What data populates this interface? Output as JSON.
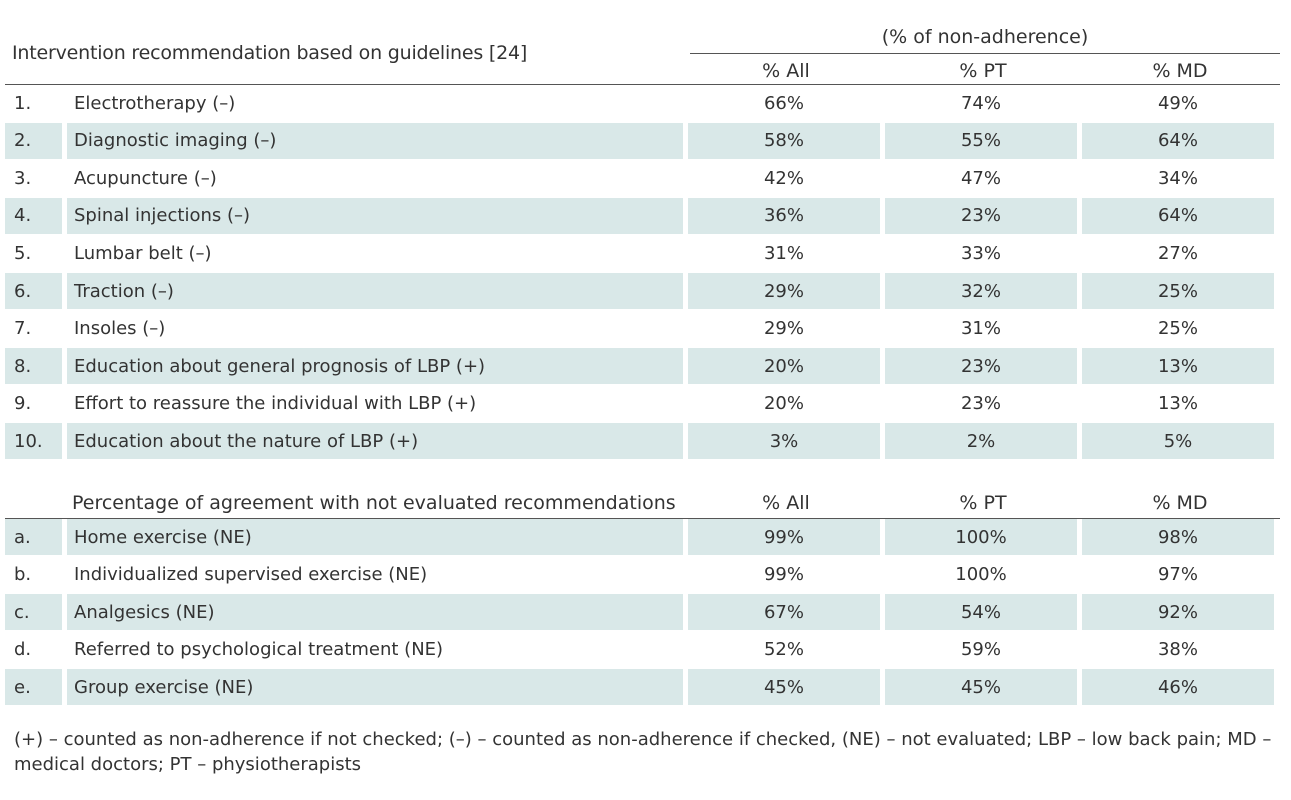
{
  "table1": {
    "heading": "Intervention recommendation based on guidelines [24]",
    "group_title": "(% of non-adherence)",
    "columns": [
      "% All",
      "% PT",
      "% MD"
    ],
    "rows": [
      {
        "num": "1.",
        "label": "Electrotherapy (–)",
        "all": "66%",
        "pt": "74%",
        "md": "49%"
      },
      {
        "num": "2.",
        "label": "Diagnostic imaging (–)",
        "all": "58%",
        "pt": "55%",
        "md": "64%"
      },
      {
        "num": "3.",
        "label": "Acupuncture (–)",
        "all": "42%",
        "pt": "47%",
        "md": "34%"
      },
      {
        "num": "4.",
        "label": "Spinal injections (–)",
        "all": "36%",
        "pt": "23%",
        "md": "64%"
      },
      {
        "num": "5.",
        "label": "Lumbar belt (–)",
        "all": "31%",
        "pt": "33%",
        "md": "27%"
      },
      {
        "num": "6.",
        "label": "Traction (–)",
        "all": "29%",
        "pt": "32%",
        "md": "25%"
      },
      {
        "num": "7.",
        "label": "Insoles (–)",
        "all": "29%",
        "pt": "31%",
        "md": "25%"
      },
      {
        "num": "8.",
        "label": "Education about general prognosis of LBP (+)",
        "all": "20%",
        "pt": "23%",
        "md": "13%"
      },
      {
        "num": "9.",
        "label": "Effort to reassure the individual with LBP (+)",
        "all": "20%",
        "pt": "23%",
        "md": "13%"
      },
      {
        "num": "10.",
        "label": "Education about the nature of LBP (+)",
        "all": "3%",
        "pt": "2%",
        "md": "5%"
      }
    ]
  },
  "table2": {
    "heading": "Percentage of agreement with not evaluated recommendations",
    "columns": [
      "% All",
      "% PT",
      "% MD"
    ],
    "rows": [
      {
        "num": "a.",
        "label": "Home exercise (NE)",
        "all": "99%",
        "pt": "100%",
        "md": "98%"
      },
      {
        "num": "b.",
        "label": "Individualized supervised exercise (NE)",
        "all": "99%",
        "pt": "100%",
        "md": "97%"
      },
      {
        "num": "c.",
        "label": "Analgesics (NE)",
        "all": "67%",
        "pt": "54%",
        "md": "92%"
      },
      {
        "num": "d.",
        "label": "Referred to psychological treatment (NE)",
        "all": "52%",
        "pt": "59%",
        "md": "38%"
      },
      {
        "num": "e.",
        "label": "Group exercise (NE)",
        "all": "45%",
        "pt": "45%",
        "md": "46%"
      }
    ]
  },
  "footnote": "(+) – counted as non-adherence if not checked; (–) – counted as non-adherence if checked, (NE) – not evaluated; LBP – low back pain; MD – medical doctors; PT – physiotherapists",
  "colors": {
    "shade": "#d9e8e8",
    "text": "#333333"
  }
}
